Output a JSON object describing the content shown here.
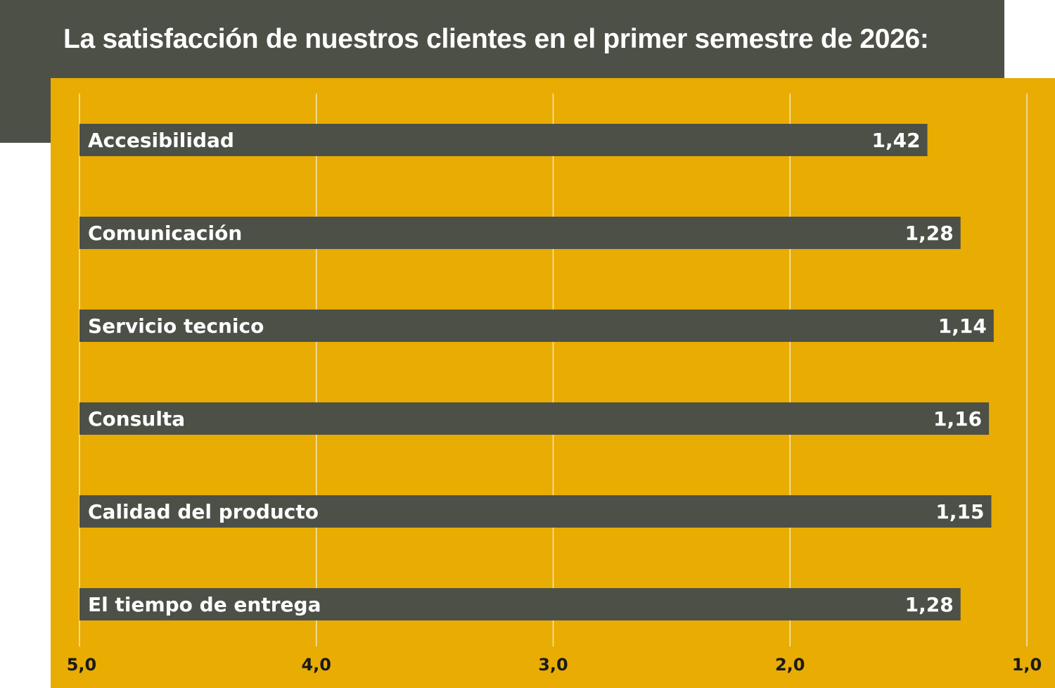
{
  "title": "La satisfacción de nuestros clientes en el primer semestre de 2026:",
  "colors": {
    "header_bg": "#4d5047",
    "panel_bg": "#e8ac03",
    "bar": "#4d5047",
    "gridline": "#f3e6b8",
    "bar_text": "#ffffff",
    "tick_text": "#1a1a1a"
  },
  "chart_data": {
    "type": "bar",
    "orientation": "horizontal",
    "x_axis_reversed": true,
    "xlim": [
      5.0,
      1.0
    ],
    "x_ticks": [
      "5,0",
      "4,0",
      "3,0",
      "2,0",
      "1,0"
    ],
    "x_tick_values": [
      5,
      4,
      3,
      2,
      1
    ],
    "grid": true,
    "categories": [
      "Accesibilidad",
      "Comunicación",
      "Servicio tecnico",
      "Consulta",
      "Calidad del producto",
      "El tiempo de entrega"
    ],
    "values": [
      1.42,
      1.28,
      1.14,
      1.16,
      1.15,
      1.28
    ],
    "value_labels": [
      "1,42",
      "1,28",
      "1,14",
      "1,16",
      "1,15",
      "1,28"
    ]
  }
}
